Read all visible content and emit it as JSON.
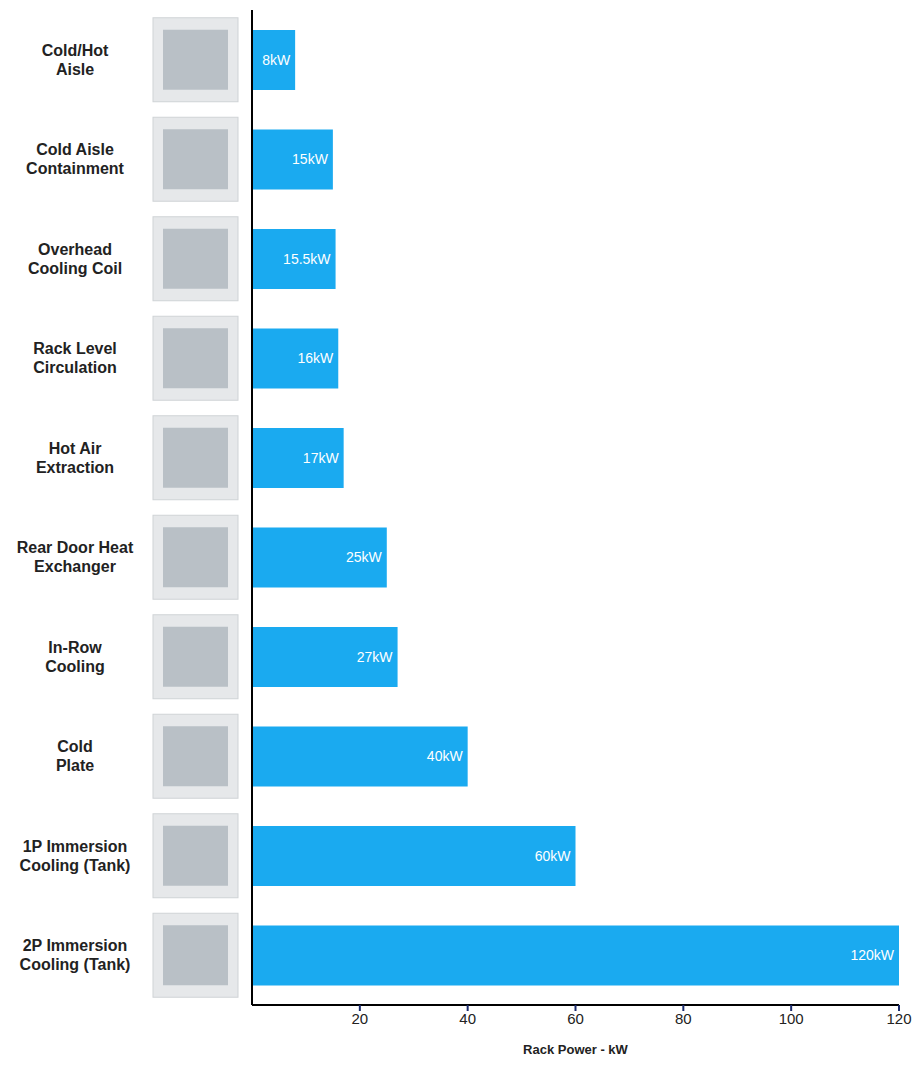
{
  "chart_data": {
    "type": "bar",
    "orientation": "horizontal",
    "categories": [
      "Cold/Hot Aisle",
      "Cold Aisle Containment",
      "Overhead Cooling Coil",
      "Rack Level Circulation",
      "Hot Air Extraction",
      "Rear Door Heat Exchanger",
      "In-Row Cooling",
      "Cold Plate",
      "1P Immersion Cooling (Tank)",
      "2P Immersion Cooling (Tank)"
    ],
    "values": [
      8,
      15,
      15.5,
      16,
      17,
      25,
      27,
      40,
      60,
      120
    ],
    "value_labels": [
      "8kW",
      "15kW",
      "15.5kW",
      "16kW",
      "17kW",
      "25kW",
      "27kW",
      "40kW",
      "60kW",
      "120kW"
    ],
    "data_labels": true,
    "color": "#1aaaf0",
    "xlabel": "Rack Power - kW",
    "xlim": [
      0,
      120
    ],
    "xticks": [
      20,
      40,
      60,
      80,
      100,
      120
    ],
    "grid": false
  }
}
